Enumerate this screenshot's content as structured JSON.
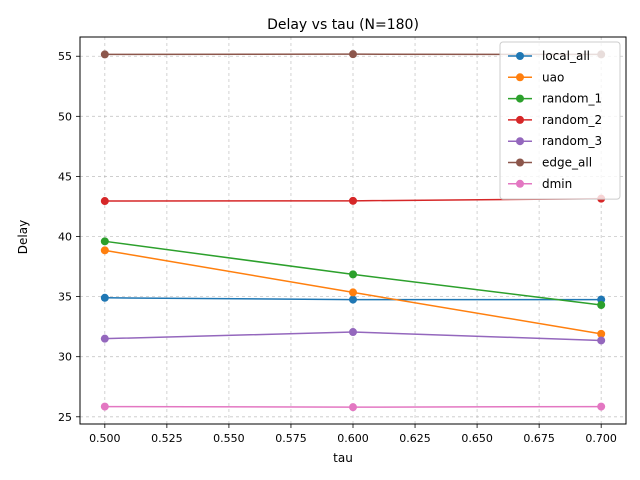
{
  "chart_data": {
    "type": "line",
    "title": "Delay vs tau (N=180)",
    "xlabel": "tau",
    "ylabel": "Delay",
    "x": [
      0.5,
      0.6,
      0.7
    ],
    "xlim": [
      0.49,
      0.71
    ],
    "ylim": [
      24.4,
      56.6
    ],
    "xticks": [
      0.5,
      0.525,
      0.55,
      0.575,
      0.6,
      0.625,
      0.65,
      0.675,
      0.7
    ],
    "xtick_labels": [
      "0.500",
      "0.525",
      "0.550",
      "0.575",
      "0.600",
      "0.625",
      "0.650",
      "0.675",
      "0.700"
    ],
    "yticks": [
      25,
      30,
      35,
      40,
      45,
      50,
      55
    ],
    "ytick_labels": [
      "25",
      "30",
      "35",
      "40",
      "45",
      "50",
      "55"
    ],
    "grid": true,
    "legend_position": "top-right",
    "series": [
      {
        "name": "local_all",
        "color": "#1f77b4",
        "values": [
          34.9,
          34.75,
          34.75
        ]
      },
      {
        "name": "uao",
        "color": "#ff7f0e",
        "values": [
          38.85,
          35.35,
          31.9
        ]
      },
      {
        "name": "random_1",
        "color": "#2ca02c",
        "values": [
          39.6,
          36.85,
          34.3
        ]
      },
      {
        "name": "random_2",
        "color": "#d62728",
        "values": [
          42.95,
          42.97,
          43.15
        ]
      },
      {
        "name": "random_3",
        "color": "#9467bd",
        "values": [
          31.5,
          32.05,
          31.35
        ]
      },
      {
        "name": "edge_all",
        "color": "#8c564b",
        "values": [
          55.15,
          55.17,
          55.15
        ]
      },
      {
        "name": "dmin",
        "color": "#e377c2",
        "values": [
          25.85,
          25.8,
          25.85
        ]
      }
    ]
  }
}
